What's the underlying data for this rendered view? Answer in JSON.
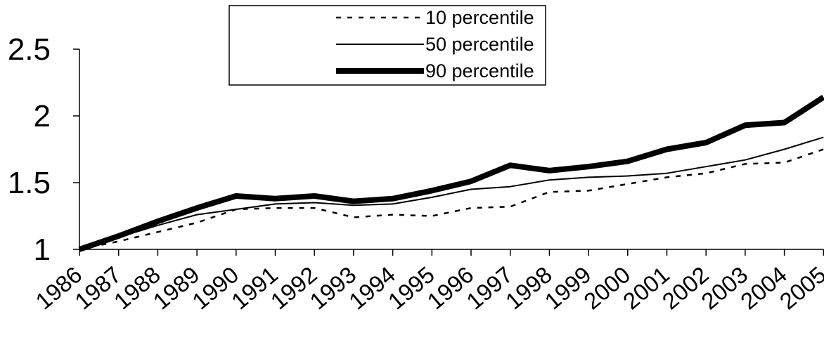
{
  "chart_data": {
    "type": "line",
    "title": "",
    "xlabel": "",
    "ylabel": "",
    "x": [
      "1986",
      "1987",
      "1988",
      "1989",
      "1990",
      "1991",
      "1992",
      "1993",
      "1994",
      "1995",
      "1996",
      "1997",
      "1998",
      "1999",
      "2000",
      "2001",
      "2002",
      "2003",
      "2004",
      "2005"
    ],
    "ylim": [
      1,
      2.5
    ],
    "yticks": [
      "1",
      "1.5",
      "2",
      "2.5"
    ],
    "grid": false,
    "legend_position": "top-center",
    "series": [
      {
        "name": "10 percentile",
        "line_style": "dotted",
        "values": [
          1.0,
          1.06,
          1.13,
          1.2,
          1.3,
          1.31,
          1.31,
          1.24,
          1.26,
          1.25,
          1.31,
          1.32,
          1.43,
          1.44,
          1.49,
          1.54,
          1.57,
          1.64,
          1.65,
          1.75
        ]
      },
      {
        "name": "50 percentile",
        "line_style": "thin",
        "values": [
          1.0,
          1.09,
          1.18,
          1.26,
          1.3,
          1.34,
          1.35,
          1.33,
          1.34,
          1.39,
          1.45,
          1.47,
          1.52,
          1.54,
          1.55,
          1.57,
          1.62,
          1.67,
          1.75,
          1.84
        ]
      },
      {
        "name": "90 percentile",
        "line_style": "thick",
        "values": [
          1.0,
          1.1,
          1.21,
          1.31,
          1.4,
          1.38,
          1.4,
          1.36,
          1.38,
          1.44,
          1.51,
          1.63,
          1.59,
          1.62,
          1.66,
          1.75,
          1.8,
          1.93,
          1.95,
          2.14
        ]
      }
    ]
  }
}
